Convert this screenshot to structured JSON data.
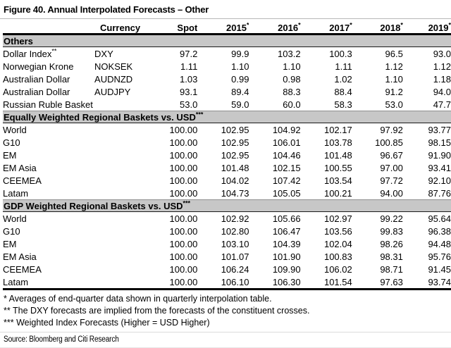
{
  "title": "Figure 40. Annual Interpolated Forecasts – Other",
  "colors": {
    "band_bg": "#c7c7c7",
    "rule": "#000000"
  },
  "table": {
    "header": {
      "currency": "Currency",
      "spot": "Spot",
      "years": [
        {
          "label": "2015",
          "sup": "*"
        },
        {
          "label": "2016",
          "sup": "*"
        },
        {
          "label": "2017",
          "sup": "*"
        },
        {
          "label": "2018",
          "sup": "*"
        },
        {
          "label": "2019",
          "sup": "*"
        }
      ]
    },
    "sections": [
      {
        "header": "Others",
        "header_sup": "",
        "rows": [
          {
            "name": "Dollar Index",
            "name_sup": "**",
            "currency": "DXY",
            "spot": "97.2",
            "values": [
              "99.9",
              "103.2",
              "100.3",
              "96.5",
              "93.0"
            ]
          },
          {
            "name": "Norwegian Krone",
            "name_sup": "",
            "currency": "NOKSEK",
            "spot": "1.11",
            "values": [
              "1.10",
              "1.10",
              "1.11",
              "1.12",
              "1.12"
            ]
          },
          {
            "name": "Australian Dollar",
            "name_sup": "",
            "currency": "AUDNZD",
            "spot": "1.03",
            "values": [
              "0.99",
              "0.98",
              "1.02",
              "1.10",
              "1.18"
            ]
          },
          {
            "name": "Australian Dollar",
            "name_sup": "",
            "currency": "AUDJPY",
            "spot": "93.1",
            "values": [
              "89.4",
              "88.3",
              "88.4",
              "91.2",
              "94.0"
            ]
          },
          {
            "name": "Russian Ruble Basket",
            "name_sup": "",
            "currency": "",
            "spot": "53.0",
            "values": [
              "59.0",
              "60.0",
              "58.3",
              "53.0",
              "47.7"
            ]
          }
        ]
      },
      {
        "header": "Equally Weighted Regional Baskets vs. USD",
        "header_sup": "***",
        "rows": [
          {
            "name": "World",
            "name_sup": "",
            "currency": "",
            "spot": "100.00",
            "values": [
              "102.95",
              "104.92",
              "102.17",
              "97.92",
              "93.77"
            ]
          },
          {
            "name": "G10",
            "name_sup": "",
            "currency": "",
            "spot": "100.00",
            "values": [
              "102.95",
              "106.01",
              "103.78",
              "100.85",
              "98.15"
            ]
          },
          {
            "name": "EM",
            "name_sup": "",
            "currency": "",
            "spot": "100.00",
            "values": [
              "102.95",
              "104.46",
              "101.48",
              "96.67",
              "91.90"
            ]
          },
          {
            "name": "EM Asia",
            "name_sup": "",
            "currency": "",
            "spot": "100.00",
            "values": [
              "101.48",
              "102.15",
              "100.55",
              "97.00",
              "93.41"
            ]
          },
          {
            "name": "CEEMEA",
            "name_sup": "",
            "currency": "",
            "spot": "100.00",
            "values": [
              "104.02",
              "107.42",
              "103.54",
              "97.72",
              "92.10"
            ]
          },
          {
            "name": "Latam",
            "name_sup": "",
            "currency": "",
            "spot": "100.00",
            "values": [
              "104.73",
              "105.05",
              "100.21",
              "94.00",
              "87.76"
            ]
          }
        ]
      },
      {
        "header": "GDP Weighted Regional Baskets vs. USD",
        "header_sup": "***",
        "rows": [
          {
            "name": "World",
            "name_sup": "",
            "currency": "",
            "spot": "100.00",
            "values": [
              "102.92",
              "105.66",
              "102.97",
              "99.22",
              "95.64"
            ]
          },
          {
            "name": "G10",
            "name_sup": "",
            "currency": "",
            "spot": "100.00",
            "values": [
              "102.80",
              "106.47",
              "103.56",
              "99.83",
              "96.38"
            ]
          },
          {
            "name": "EM",
            "name_sup": "",
            "currency": "",
            "spot": "100.00",
            "values": [
              "103.10",
              "104.39",
              "102.04",
              "98.26",
              "94.48"
            ]
          },
          {
            "name": "EM Asia",
            "name_sup": "",
            "currency": "",
            "spot": "100.00",
            "values": [
              "101.07",
              "101.90",
              "100.83",
              "98.31",
              "95.76"
            ]
          },
          {
            "name": "CEEMEA",
            "name_sup": "",
            "currency": "",
            "spot": "100.00",
            "values": [
              "106.24",
              "109.90",
              "106.02",
              "98.71",
              "91.45"
            ]
          },
          {
            "name": "Latam",
            "name_sup": "",
            "currency": "",
            "spot": "100.00",
            "values": [
              "106.10",
              "106.30",
              "101.54",
              "97.63",
              "93.74"
            ]
          }
        ]
      }
    ]
  },
  "footnotes": [
    "* Averages of end-quarter data shown in quarterly interpolation table.",
    "** The DXY forecasts are implied from the forecasts of the constituent crosses.",
    "*** Weighted Index Forecasts (Higher = USD Higher)"
  ],
  "source": "Source: Bloomberg and Citi Research"
}
